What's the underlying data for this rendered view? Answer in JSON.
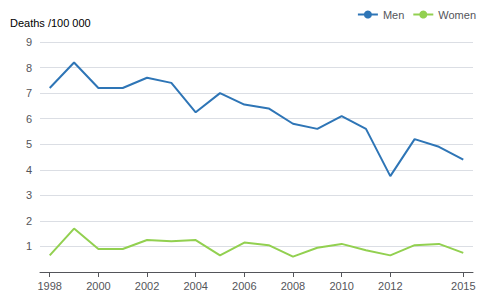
{
  "chart_data": {
    "type": "line",
    "ylabel": "Deaths /100 000",
    "x": [
      1998,
      1999,
      2000,
      2001,
      2002,
      2003,
      2004,
      2005,
      2006,
      2007,
      2008,
      2009,
      2010,
      2011,
      2012,
      2013,
      2014,
      2015
    ],
    "series": [
      {
        "name": "Men",
        "color": "#2E75B6",
        "values": [
          7.2,
          8.2,
          7.2,
          7.2,
          7.6,
          7.4,
          6.25,
          7.0,
          6.55,
          6.4,
          5.8,
          5.6,
          6.1,
          5.6,
          3.75,
          5.2,
          4.9,
          4.4
        ]
      },
      {
        "name": "Women",
        "color": "#92D050",
        "values": [
          0.65,
          1.7,
          0.9,
          0.9,
          1.25,
          1.2,
          1.25,
          0.65,
          1.15,
          1.05,
          0.6,
          0.95,
          1.1,
          0.85,
          0.65,
          1.05,
          1.1,
          0.75
        ]
      }
    ],
    "xlim": [
      1997.6,
      2015.4
    ],
    "xticks": [
      1998,
      2000,
      2002,
      2004,
      2006,
      2008,
      2010,
      2012,
      2015
    ],
    "ylim": [
      0,
      9
    ],
    "yticks": [
      {
        "value": 0,
        "label": ""
      },
      1,
      2,
      3,
      4,
      5,
      6,
      7,
      8,
      9
    ],
    "grid": true,
    "legend": "upper right"
  }
}
